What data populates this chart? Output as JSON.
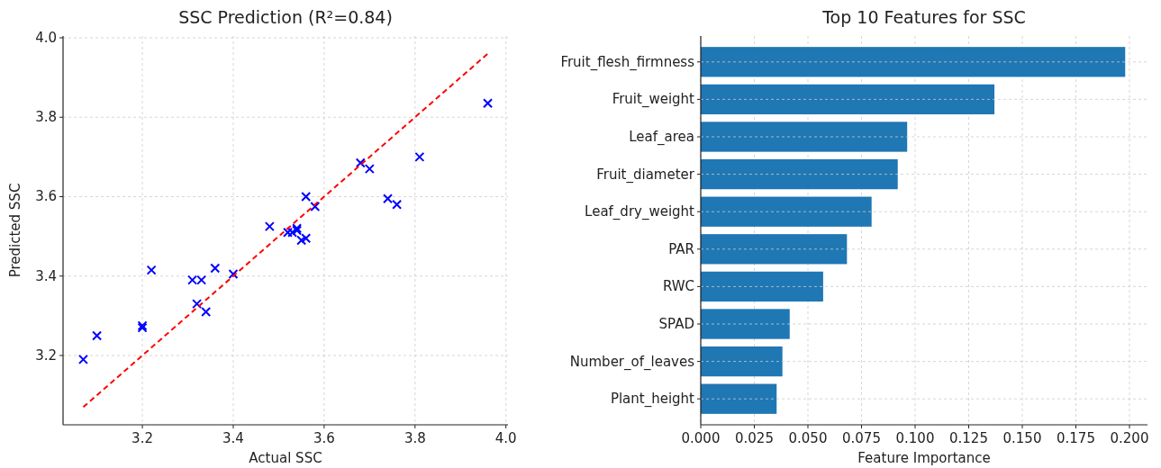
{
  "chart_data": [
    {
      "type": "scatter",
      "title": "SSC Prediction (R²=0.84)",
      "xlabel": "Actual SSC",
      "ylabel": "Predicted SSC",
      "xlim": [
        3.0255,
        4.0045
      ],
      "ylim": [
        3.0255,
        4.0045
      ],
      "xticks": [
        3.2,
        3.4,
        3.6,
        3.8,
        {
          "value": 4,
          "label": "4.0"
        }
      ],
      "yticks": [
        3.2,
        3.4,
        3.6,
        3.8,
        {
          "value": 4,
          "label": "4.0"
        }
      ],
      "grid": true,
      "series": [
        {
          "type": "scatter",
          "color": "#0000ff",
          "marker": "cross",
          "x": [
            3.07,
            3.1,
            3.2,
            3.2,
            3.22,
            3.31,
            3.33,
            3.32,
            3.34,
            3.36,
            3.4,
            3.48,
            3.52,
            3.53,
            3.54,
            3.54,
            3.55,
            3.56,
            3.56,
            3.58,
            3.68,
            3.7,
            3.74,
            3.76,
            3.81,
            3.96
          ],
          "values": [
            3.19,
            3.25,
            3.275,
            3.27,
            3.415,
            3.39,
            3.39,
            3.33,
            3.31,
            3.42,
            3.405,
            3.525,
            3.51,
            3.51,
            3.515,
            3.52,
            3.49,
            3.495,
            3.6,
            3.575,
            3.685,
            3.67,
            3.595,
            3.58,
            3.7,
            3.835
          ]
        },
        {
          "type": "line",
          "color": "#ff0000",
          "line_style": "dashed",
          "x": [
            3.07,
            3.96
          ],
          "values": [
            3.07,
            3.96
          ]
        }
      ]
    },
    {
      "type": "bar",
      "orientation": "horizontal",
      "title": "Top 10 Features for SSC",
      "xlabel": "Feature Importance",
      "color": "#1f77b4",
      "grid": true,
      "xlim": [
        0,
        0.2084
      ],
      "xticks": [
        {
          "value": 0,
          "label": "0.000"
        },
        {
          "value": 0.025,
          "label": "0.025"
        },
        {
          "value": 0.05,
          "label": "0.050"
        },
        {
          "value": 0.075,
          "label": "0.075"
        },
        {
          "value": 0.1,
          "label": "0.100"
        },
        {
          "value": 0.125,
          "label": "0.125"
        },
        {
          "value": 0.15,
          "label": "0.150"
        },
        {
          "value": 0.175,
          "label": "0.175"
        },
        {
          "value": 0.2,
          "label": "0.200"
        }
      ],
      "categories": [
        "Fruit_flesh_firmness",
        "Fruit_weight",
        "Leaf_area",
        "Fruit_diameter",
        "Leaf_dry_weight",
        "PAR",
        "RWC",
        "SPAD",
        "Number_of_leaves",
        "Plant_height"
      ],
      "values": [
        0.198,
        0.137,
        0.0963,
        0.0919,
        0.0797,
        0.0682,
        0.0571,
        0.0415,
        0.0381,
        0.0354
      ]
    }
  ]
}
